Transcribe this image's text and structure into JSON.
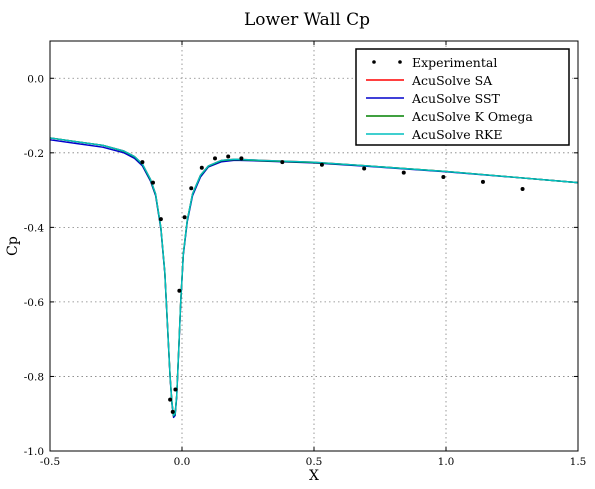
{
  "chart_data": {
    "type": "line",
    "title": "Lower Wall Cp",
    "xlabel": "X",
    "ylabel": "Cp",
    "xlim": [
      -0.5,
      1.5
    ],
    "ylim": [
      -1.0,
      0.1
    ],
    "xticks": [
      -0.5,
      0.0,
      0.5,
      1.0,
      1.5
    ],
    "xtick_labels": [
      "-0.5",
      "0.0",
      "0.5",
      "1.0",
      "1.5"
    ],
    "yticks": [
      -1.0,
      -0.8,
      -0.6,
      -0.4,
      -0.2,
      0.0
    ],
    "ytick_labels": [
      "-1.0",
      "-0.8",
      "-0.6",
      "-0.4",
      "-0.2",
      "0.0"
    ],
    "grid": true,
    "legend_position": "top-right",
    "series": [
      {
        "name": "Experimental",
        "kind": "scatter",
        "color": "#000000",
        "x": [
          -0.15,
          -0.11,
          -0.08,
          -0.045,
          -0.035,
          -0.025,
          -0.01,
          0.01,
          0.035,
          0.075,
          0.125,
          0.175,
          0.225,
          0.38,
          0.53,
          0.69,
          0.84,
          0.99,
          1.14,
          1.29
        ],
        "y": [
          -0.225,
          -0.28,
          -0.378,
          -0.862,
          -0.895,
          -0.835,
          -0.57,
          -0.373,
          -0.295,
          -0.24,
          -0.215,
          -0.21,
          -0.215,
          -0.225,
          -0.232,
          -0.242,
          -0.253,
          -0.265,
          -0.278,
          -0.297
        ]
      },
      {
        "name": "AcuSolve SA",
        "kind": "line",
        "color": "#ff0000",
        "x": [
          -0.5,
          -0.4,
          -0.3,
          -0.22,
          -0.18,
          -0.15,
          -0.12,
          -0.1,
          -0.08,
          -0.065,
          -0.055,
          -0.045,
          -0.038,
          -0.032,
          -0.026,
          -0.02,
          -0.012,
          -0.005,
          0.005,
          0.02,
          0.04,
          0.07,
          0.1,
          0.15,
          0.2,
          0.3,
          0.5,
          0.7,
          1.0,
          1.3,
          1.5
        ],
        "y": [
          -0.16,
          -0.17,
          -0.18,
          -0.195,
          -0.21,
          -0.23,
          -0.27,
          -0.31,
          -0.4,
          -0.52,
          -0.66,
          -0.8,
          -0.87,
          -0.905,
          -0.9,
          -0.85,
          -0.72,
          -0.6,
          -0.47,
          -0.38,
          -0.31,
          -0.26,
          -0.235,
          -0.22,
          -0.217,
          -0.22,
          -0.225,
          -0.235,
          -0.25,
          -0.268,
          -0.28
        ]
      },
      {
        "name": "AcuSolve SST",
        "kind": "line",
        "color": "#0000cc",
        "x": [
          -0.5,
          -0.4,
          -0.3,
          -0.22,
          -0.18,
          -0.15,
          -0.12,
          -0.1,
          -0.08,
          -0.065,
          -0.055,
          -0.045,
          -0.038,
          -0.032,
          -0.026,
          -0.02,
          -0.012,
          -0.005,
          0.005,
          0.02,
          0.04,
          0.07,
          0.1,
          0.15,
          0.2,
          0.3,
          0.5,
          0.7,
          1.0,
          1.3,
          1.5
        ],
        "y": [
          -0.165,
          -0.175,
          -0.185,
          -0.2,
          -0.215,
          -0.235,
          -0.275,
          -0.315,
          -0.405,
          -0.525,
          -0.665,
          -0.805,
          -0.875,
          -0.91,
          -0.905,
          -0.855,
          -0.725,
          -0.605,
          -0.475,
          -0.385,
          -0.315,
          -0.265,
          -0.238,
          -0.224,
          -0.22,
          -0.222,
          -0.227,
          -0.236,
          -0.251,
          -0.268,
          -0.28
        ]
      },
      {
        "name": "AcuSolve K Omega",
        "kind": "line",
        "color": "#008000",
        "x": [
          -0.5,
          -0.4,
          -0.3,
          -0.22,
          -0.18,
          -0.15,
          -0.12,
          -0.1,
          -0.08,
          -0.065,
          -0.055,
          -0.045,
          -0.038,
          -0.032,
          -0.026,
          -0.02,
          -0.012,
          -0.005,
          0.005,
          0.02,
          0.04,
          0.07,
          0.1,
          0.15,
          0.2,
          0.3,
          0.5,
          0.7,
          1.0,
          1.3,
          1.5
        ],
        "y": [
          -0.16,
          -0.17,
          -0.18,
          -0.196,
          -0.211,
          -0.231,
          -0.272,
          -0.312,
          -0.402,
          -0.522,
          -0.662,
          -0.802,
          -0.872,
          -0.906,
          -0.901,
          -0.851,
          -0.721,
          -0.601,
          -0.471,
          -0.381,
          -0.311,
          -0.261,
          -0.236,
          -0.221,
          -0.218,
          -0.221,
          -0.226,
          -0.235,
          -0.25,
          -0.268,
          -0.28
        ]
      },
      {
        "name": "AcuSolve RKE",
        "kind": "line",
        "color": "#00bfbf",
        "x": [
          -0.5,
          -0.4,
          -0.3,
          -0.22,
          -0.18,
          -0.15,
          -0.12,
          -0.1,
          -0.08,
          -0.065,
          -0.055,
          -0.045,
          -0.038,
          -0.032,
          -0.026,
          -0.02,
          -0.012,
          -0.005,
          0.005,
          0.02,
          0.04,
          0.07,
          0.1,
          0.15,
          0.2,
          0.3,
          0.5,
          0.7,
          1.0,
          1.3,
          1.5
        ],
        "y": [
          -0.16,
          -0.17,
          -0.18,
          -0.195,
          -0.21,
          -0.23,
          -0.27,
          -0.31,
          -0.4,
          -0.52,
          -0.66,
          -0.8,
          -0.87,
          -0.905,
          -0.9,
          -0.85,
          -0.72,
          -0.6,
          -0.47,
          -0.38,
          -0.31,
          -0.26,
          -0.235,
          -0.22,
          -0.217,
          -0.22,
          -0.225,
          -0.235,
          -0.25,
          -0.268,
          -0.28
        ]
      }
    ]
  }
}
